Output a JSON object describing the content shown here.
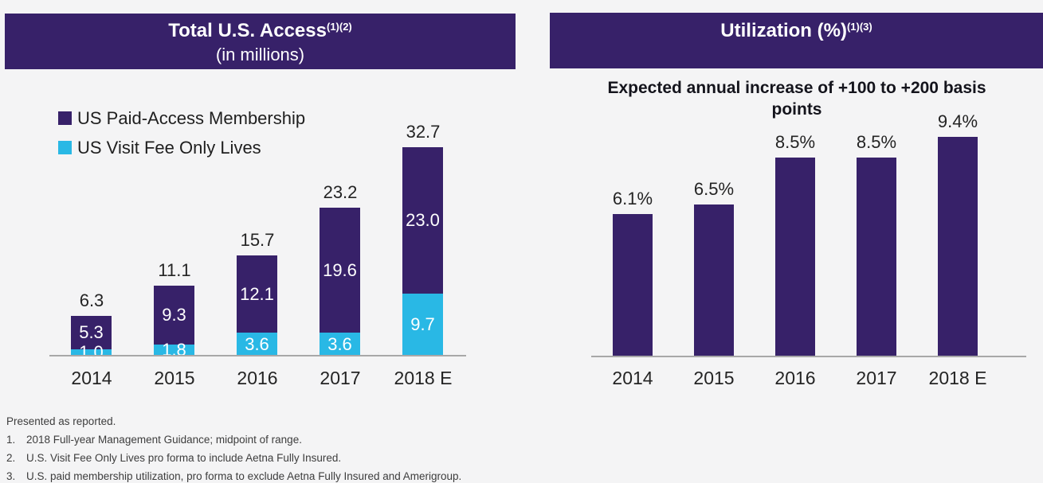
{
  "colors": {
    "header_bg": "#372169",
    "purple": "#372169",
    "cyan": "#29b8e5",
    "axis": "#a8a8a8",
    "background": "#f4f4f5",
    "dark_text": "#242424",
    "white_text": "#ffffff"
  },
  "left_panel": {
    "header": {
      "title": "Total U.S. Access",
      "superscript": "(1)(2)",
      "subtitle": "(in millions)"
    },
    "legend": [
      {
        "label": "US Paid-Access Membership",
        "color": "#372169"
      },
      {
        "label": "US Visit Fee Only Lives",
        "color": "#29b8e5"
      }
    ]
  },
  "right_panel": {
    "header": {
      "title": "Utilization (%)",
      "superscript": "(1)(3)"
    },
    "subtitle": "Expected annual increase of +100 to +200 basis points"
  },
  "chart_data": [
    {
      "type": "bar",
      "stacked": true,
      "title": "Total U.S. Access (in millions)",
      "categories": [
        "2014",
        "2015",
        "2016",
        "2017",
        "2018 E"
      ],
      "series": [
        {
          "name": "US Visit Fee Only Lives",
          "color": "#29b8e5",
          "values": [
            1.0,
            1.8,
            3.6,
            3.6,
            9.7
          ],
          "labels": [
            "1.0",
            "1.8",
            "3.6",
            "3.6",
            "9.7"
          ]
        },
        {
          "name": "US Paid-Access Membership",
          "color": "#372169",
          "values": [
            5.3,
            9.3,
            12.1,
            19.6,
            23.0
          ],
          "labels": [
            "5.3",
            "9.3",
            "12.1",
            "19.6",
            "23.0"
          ]
        }
      ],
      "totals": [
        6.3,
        11.1,
        15.7,
        23.2,
        32.7
      ],
      "total_labels": [
        "6.3",
        "11.1",
        "15.7",
        "23.2",
        "32.7"
      ],
      "ylim": [
        0,
        33
      ],
      "grid": false,
      "legend_position": "top-left"
    },
    {
      "type": "bar",
      "stacked": false,
      "title": "Utilization (%)",
      "categories": [
        "2014",
        "2015",
        "2016",
        "2017",
        "2018 E"
      ],
      "values": [
        6.1,
        6.5,
        8.5,
        8.5,
        9.4
      ],
      "value_labels": [
        "6.1%",
        "6.5%",
        "8.5%",
        "8.5%",
        "9.4%"
      ],
      "bar_color": "#372169",
      "ylim": [
        0,
        10
      ],
      "grid": false,
      "legend_position": "none"
    }
  ],
  "footnotes": {
    "intro": "Presented as reported.",
    "items": [
      {
        "num": "1.",
        "text": "2018 Full-year Management Guidance; midpoint of range."
      },
      {
        "num": "2.",
        "text": "U.S. Visit Fee Only Lives pro forma to include Aetna Fully Insured."
      },
      {
        "num": "3.",
        "text": "U.S. paid membership utilization, pro forma to exclude Aetna Fully Insured and Amerigroup."
      }
    ]
  }
}
